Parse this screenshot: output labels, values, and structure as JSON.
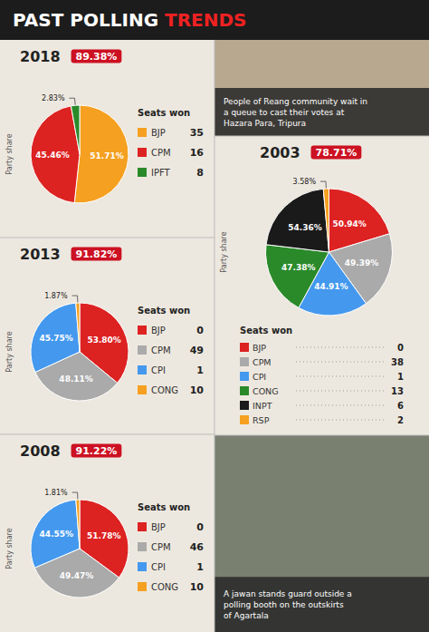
{
  "title": "PAST POLLING TRENDS",
  "annotations": [
    "People of Reang community wait in\na queue to cast their votes at\nHazara Para, Tripura",
    "A jawan stands guard outside a\npolling booth on the outskirts\nof Agartala"
  ],
  "chart_data": [
    {
      "type": "pie",
      "title": "2018",
      "subtitle": "89.38%",
      "categories": [
        "BJP",
        "CPM",
        "IPFT"
      ],
      "values": [
        51.71,
        45.46,
        2.83
      ],
      "value_labels": [
        "51.71%",
        "45.46%",
        "2.83%"
      ],
      "colors": [
        "#f5a020",
        "#dd2222",
        "#2a8a2a"
      ],
      "seats": [
        35,
        16,
        8
      ],
      "data_labels": true,
      "legend": "right",
      "annotations": [
        "Party share",
        "Seats won"
      ]
    },
    {
      "type": "pie",
      "title": "2013",
      "subtitle": "91.82%",
      "categories": [
        "BJP",
        "CPM",
        "CPI",
        "CONG"
      ],
      "values": [
        53.8,
        48.11,
        45.75,
        1.87
      ],
      "value_labels": [
        "53.80%",
        "48.11%",
        "45.75%",
        "1.87%"
      ],
      "colors": [
        "#dd2222",
        "#aaaaaa",
        "#4499ee",
        "#f5a020"
      ],
      "seats": [
        0,
        49,
        1,
        10
      ],
      "data_labels": true,
      "legend": "right",
      "annotations": [
        "Party share",
        "Seats won"
      ]
    },
    {
      "type": "pie",
      "title": "2008",
      "subtitle": "91.22%",
      "categories": [
        "BJP",
        "CPM",
        "CPI",
        "CONG"
      ],
      "values": [
        51.78,
        49.47,
        44.55,
        1.81
      ],
      "value_labels": [
        "51.78%",
        "49.47%",
        "44.55%",
        "1.81%"
      ],
      "colors": [
        "#dd2222",
        "#aaaaaa",
        "#4499ee",
        "#f5a020"
      ],
      "seats": [
        0,
        46,
        1,
        10
      ],
      "data_labels": true,
      "legend": "right",
      "annotations": [
        "Party share",
        "Seats won"
      ]
    },
    {
      "type": "pie",
      "title": "2003",
      "subtitle": "78.71%",
      "categories": [
        "BJP",
        "CPM",
        "CPI",
        "CONG",
        "INPT",
        "RSP"
      ],
      "values": [
        50.94,
        49.39,
        44.91,
        47.38,
        54.36,
        3.58
      ],
      "value_labels": [
        "50.94%",
        "49.39%",
        "44.91%",
        "47.38%",
        "54.36%",
        "3.58%"
      ],
      "colors": [
        "#dd2222",
        "#aaaaaa",
        "#4499ee",
        "#2a8a2a",
        "#1a1a1a",
        "#f5a020"
      ],
      "seats": [
        0,
        38,
        1,
        13,
        6,
        2
      ],
      "data_labels": true,
      "legend": "bottom",
      "annotations": [
        "Party share",
        "Seats won"
      ]
    }
  ]
}
